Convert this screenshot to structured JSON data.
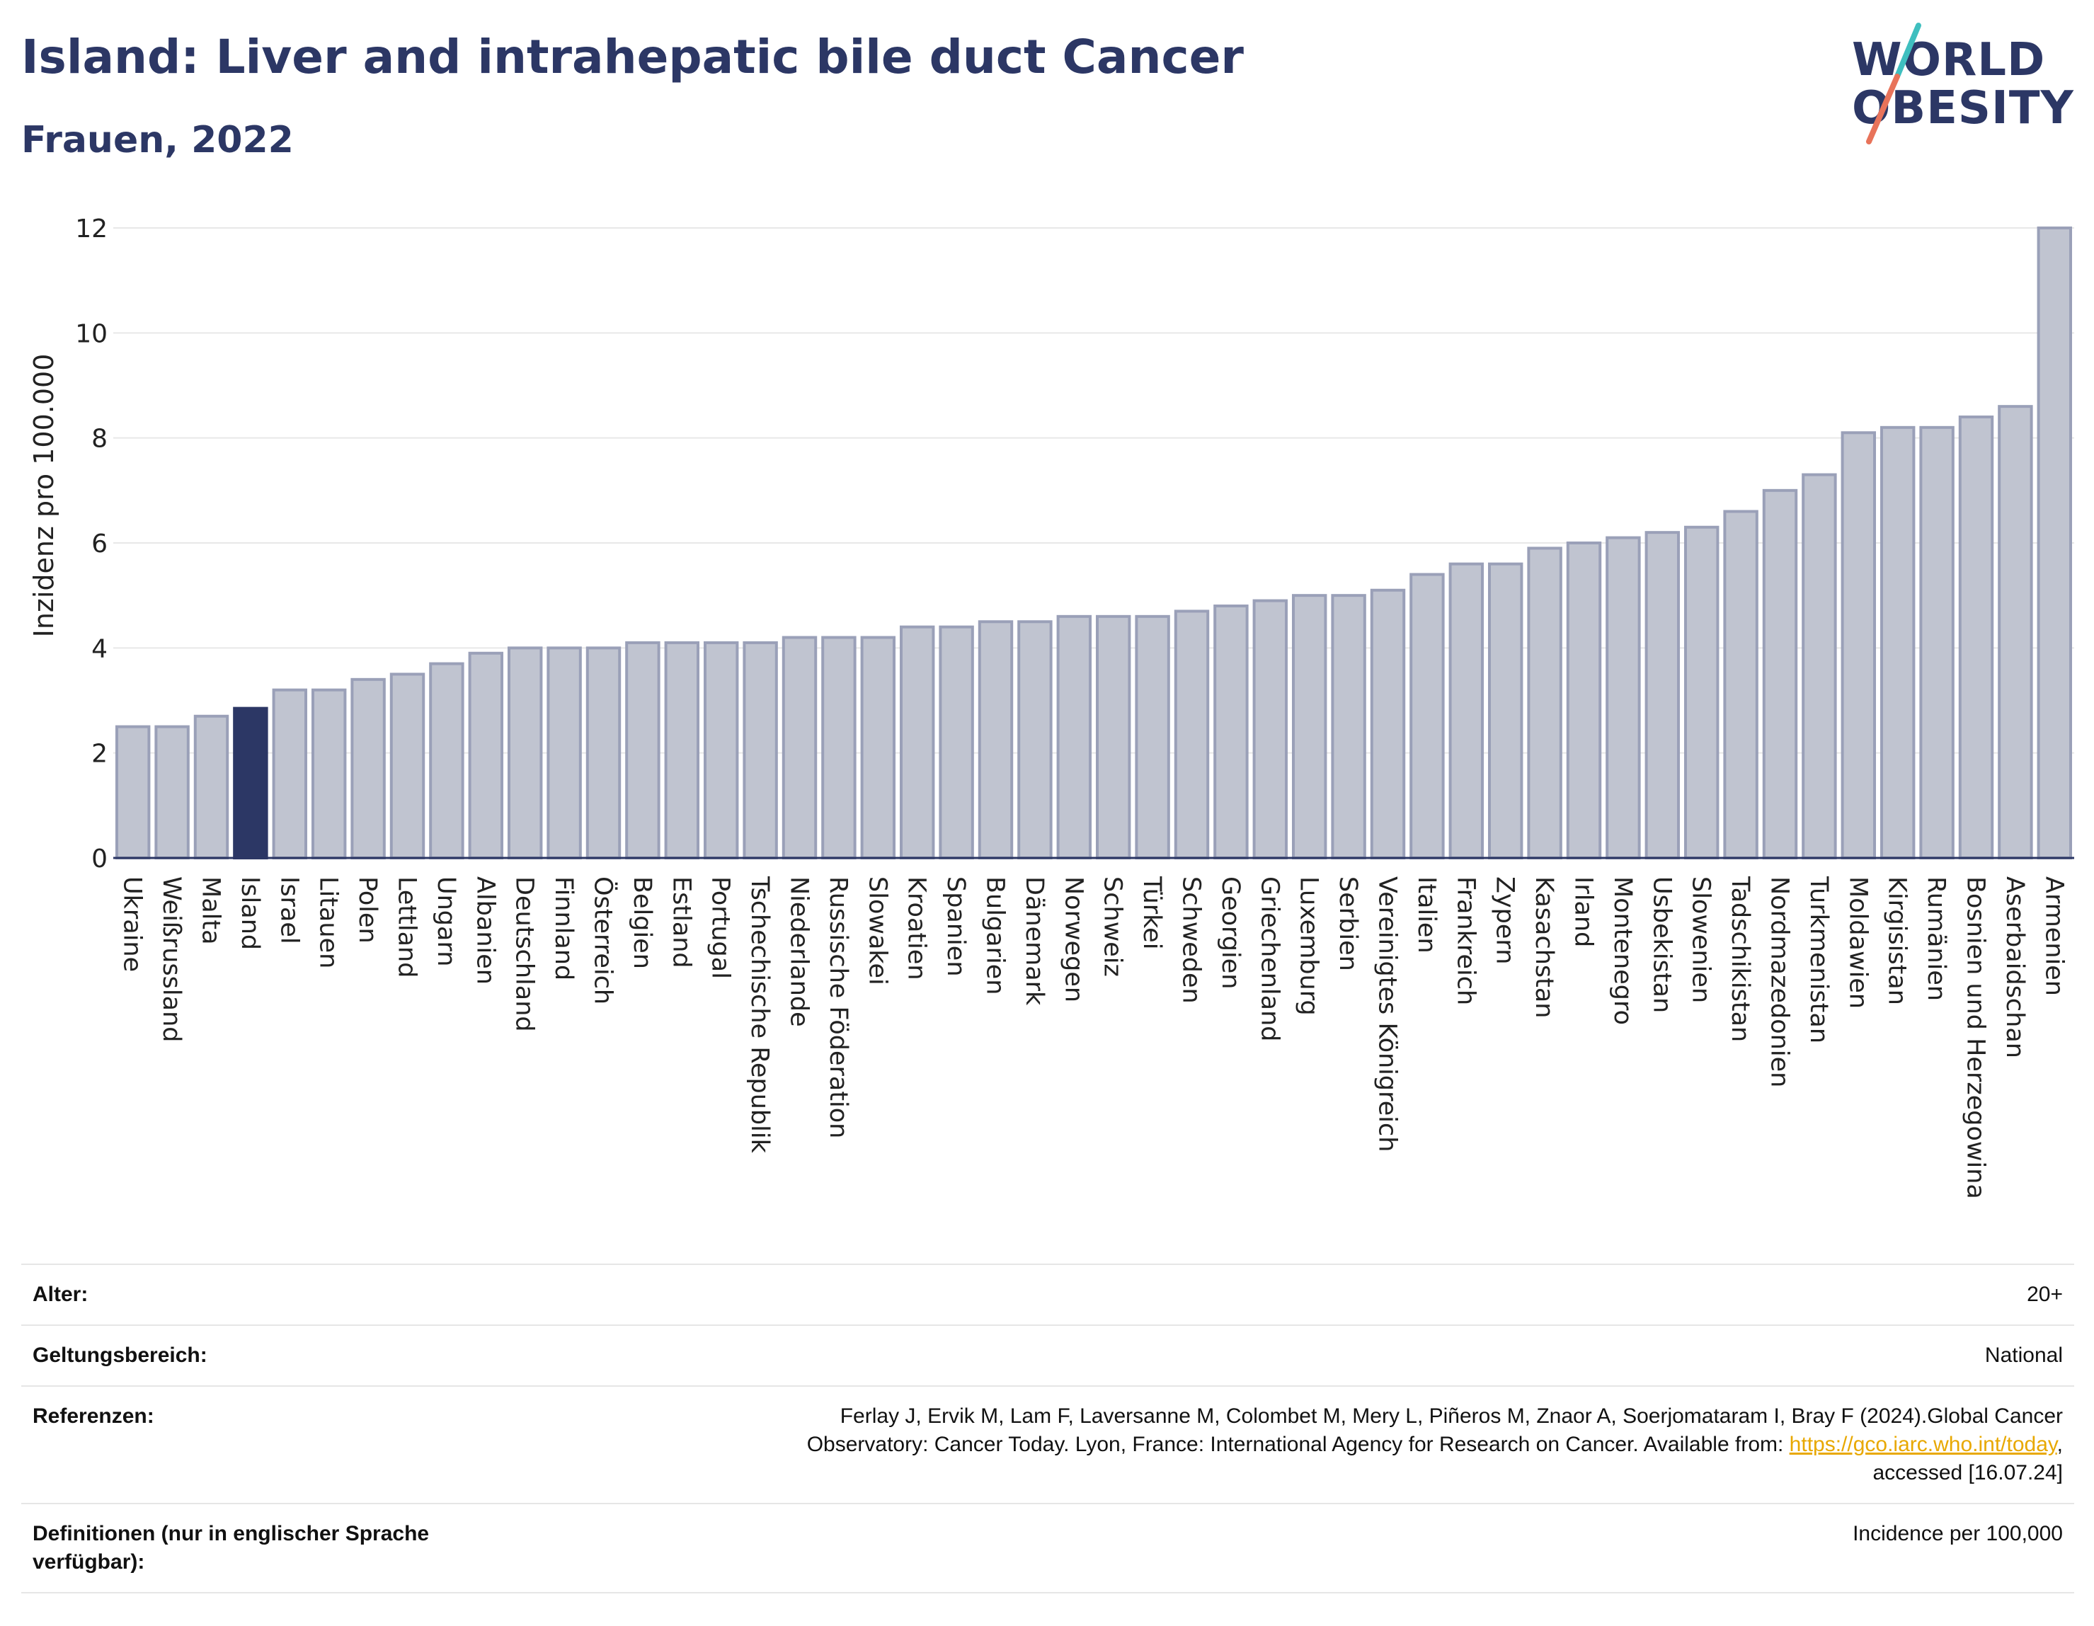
{
  "header": {
    "title": "Island: Liver and intrahepatic bile duct Cancer",
    "subtitle": "Frauen, 2022"
  },
  "logo": {
    "line1": "WORLD",
    "line2": "OBESITY",
    "slash_colors": [
      "#3fbfbf",
      "#e8735a"
    ]
  },
  "colors": {
    "bar_default": "#c0c4d0",
    "bar_stroke": "#9aa0b8",
    "bar_highlight": "#2c3765",
    "text": "#2c3765",
    "grid": "#e8e8e8"
  },
  "chart_data": {
    "type": "bar",
    "title": "Island: Liver and intrahepatic bile duct Cancer",
    "subtitle": "Frauen, 2022",
    "xlabel": "",
    "ylabel": "Inzidenz pro 100.000",
    "ylim": [
      0,
      12
    ],
    "yticks": [
      0,
      2,
      4,
      6,
      8,
      10,
      12
    ],
    "grid": true,
    "highlight": "Island",
    "categories": [
      "Ukraine",
      "Weißrussland",
      "Malta",
      "Island",
      "Israel",
      "Litauen",
      "Polen",
      "Lettland",
      "Ungarn",
      "Albanien",
      "Deutschland",
      "Finnland",
      "Österreich",
      "Belgien",
      "Estland",
      "Portugal",
      "Tschechische Republik",
      "Niederlande",
      "Russische Föderation",
      "Slowakei",
      "Kroatien",
      "Spanien",
      "Bulgarien",
      "Dänemark",
      "Norwegen",
      "Schweiz",
      "Türkei",
      "Schweden",
      "Georgien",
      "Griechenland",
      "Luxemburg",
      "Serbien",
      "Vereinigtes Königreich",
      "Italien",
      "Frankreich",
      "Zypern",
      "Kasachstan",
      "Irland",
      "Montenegro",
      "Usbekistan",
      "Slowenien",
      "Tadschikistan",
      "Nordmazedonien",
      "Turkmenistan",
      "Moldawien",
      "Kirgisistan",
      "Rumänien",
      "Bosnien und Herzegowina",
      "Aserbaidschan",
      "Armenien"
    ],
    "values": [
      2.5,
      2.5,
      2.7,
      2.85,
      3.2,
      3.2,
      3.4,
      3.5,
      3.7,
      3.9,
      4.0,
      4.0,
      4.0,
      4.1,
      4.1,
      4.1,
      4.1,
      4.2,
      4.2,
      4.2,
      4.4,
      4.4,
      4.5,
      4.5,
      4.6,
      4.6,
      4.6,
      4.7,
      4.8,
      4.9,
      5.0,
      5.0,
      5.1,
      5.4,
      5.6,
      5.6,
      5.9,
      6.0,
      6.1,
      6.2,
      6.3,
      6.6,
      7.0,
      7.3,
      8.1,
      8.2,
      8.2,
      8.4,
      8.6,
      12.0
    ]
  },
  "info": {
    "rows": [
      {
        "key": "Alter:",
        "value": "20+"
      },
      {
        "key": "Geltungsbereich:",
        "value": "National"
      },
      {
        "key": "Referenzen:",
        "value_line1": "Ferlay J, Ervik M, Lam F, Laversanne M, Colombet M, Mery L, Piñeros M, Znaor A, Soerjomataram I, Bray F (2024).Global Cancer",
        "value_line2_pre": "Observatory: Cancer Today. Lyon, France: International Agency for Research on Cancer. Available from: ",
        "value_link": "https://gco.iarc.who.int/today",
        "value_line2_post": ",",
        "value_line3": "accessed [16.07.24]"
      },
      {
        "key": "Definitionen (nur in englischer Sprache verfügbar):",
        "value": "Incidence per 100,000"
      }
    ]
  }
}
